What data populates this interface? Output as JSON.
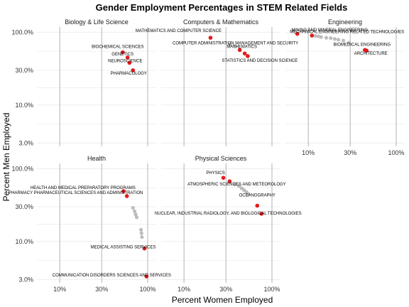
{
  "chart_data": {
    "type": "scatter",
    "title": "Gender Employment Percentages in STEM Related Fields",
    "xlabel": "Percent Women Employed",
    "ylabel": "Percent Men Employed",
    "scale": "log",
    "grid": true,
    "x_ticks": [
      {
        "value": 10,
        "label": "10%"
      },
      {
        "value": 30,
        "label": "30%"
      },
      {
        "value": 100,
        "label": "100%"
      }
    ],
    "y_ticks": [
      {
        "value": 3,
        "label": "3.0%"
      },
      {
        "value": 10,
        "label": "10.0%"
      },
      {
        "value": 30,
        "label": "30.0%"
      },
      {
        "value": 100,
        "label": "100.0%"
      }
    ],
    "highlight_color": "#e41a1c",
    "other_color": "#bdbdbd",
    "panels": [
      {
        "name": "Biology & Life Science",
        "labeled": [
          {
            "label": "BIOCHEMICAL SCIENCES",
            "x": 52,
            "y": 53
          },
          {
            "label": "GENETICS",
            "x": 59,
            "y": 45
          },
          {
            "label": "NEUROSCIENCE",
            "x": 62,
            "y": 38
          },
          {
            "label": "PHARMACOLOGY",
            "x": 68,
            "y": 30
          }
        ],
        "other": []
      },
      {
        "name": "Computers & Mathematics",
        "labeled": [
          {
            "label": "MATHEMATICS AND COMPUTER SCIENCE",
            "x": 20,
            "y": 84
          },
          {
            "label": "COMPUTER ADMINISTRATION MANAGEMENT AND SECURITY",
            "x": 43,
            "y": 57
          },
          {
            "label": "MATHEMATICS",
            "x": 49,
            "y": 51
          },
          {
            "label": "STATISTICS AND DECISION SCIENCE",
            "x": 53,
            "y": 47
          }
        ],
        "other": [
          {
            "x": 33,
            "y": 68
          },
          {
            "x": 38,
            "y": 64
          }
        ]
      },
      {
        "name": "Engineering",
        "labeled": [
          {
            "label": "MECHANICAL ENGINEERING RELATED TECHNOLOGIES",
            "x": 7.5,
            "y": 95
          },
          {
            "label": "MINING AND MINERAL ENGINEERING",
            "x": 11,
            "y": 90
          },
          {
            "label": "BIOMEDICAL ENGINEERING",
            "x": 44,
            "y": 57
          },
          {
            "label": "ARCHITECTURE",
            "x": 46,
            "y": 56
          }
        ],
        "other": [
          {
            "x": 11,
            "y": 90
          },
          {
            "x": 12,
            "y": 89
          },
          {
            "x": 13,
            "y": 88
          },
          {
            "x": 14,
            "y": 86
          },
          {
            "x": 16,
            "y": 84
          },
          {
            "x": 18,
            "y": 83
          },
          {
            "x": 20,
            "y": 81
          },
          {
            "x": 22,
            "y": 79
          },
          {
            "x": 25,
            "y": 77
          },
          {
            "x": 29,
            "y": 72
          }
        ]
      },
      {
        "name": "Health",
        "labeled": [
          {
            "label": "HEALTH AND MEDICAL PREPARATORY PROGRAMS",
            "x": 53,
            "y": 49
          },
          {
            "label": "PHARMACY PHARMACEUTICAL SCIENCES AND ADMINISTRATION",
            "x": 58,
            "y": 42
          },
          {
            "label": "MEDICAL ASSISTING SERVICES",
            "x": 92,
            "y": 8
          },
          {
            "label": "COMMUNICATION DISORDERS SCIENCES AND SERVICES",
            "x": 97,
            "y": 3.3
          }
        ],
        "other": [
          {
            "x": 68,
            "y": 29
          },
          {
            "x": 71,
            "y": 26
          },
          {
            "x": 73,
            "y": 23.5
          },
          {
            "x": 75,
            "y": 21.5
          },
          {
            "x": 84,
            "y": 14.5
          },
          {
            "x": 85,
            "y": 13
          },
          {
            "x": 86,
            "y": 11.5
          }
        ]
      },
      {
        "name": "Physical Sciences",
        "labeled": [
          {
            "label": "PHYSICS",
            "x": 28,
            "y": 75
          },
          {
            "label": "ATMOSPHERIC SCIENCES AND METEOROLOGY",
            "x": 33,
            "y": 67
          },
          {
            "label": "OCEANOGRAPHY",
            "x": 68,
            "y": 31
          },
          {
            "label": "NUCLEAR, INDUSTRIAL RADIOLOGY, AND BIOLOGICAL TECHNOLOGIES",
            "x": 76,
            "y": 24
          }
        ],
        "other": [
          {
            "x": 38,
            "y": 61
          },
          {
            "x": 42,
            "y": 58
          },
          {
            "x": 45,
            "y": 54
          },
          {
            "x": 48,
            "y": 51
          },
          {
            "x": 51,
            "y": 48
          },
          {
            "x": 54,
            "y": 45
          }
        ]
      }
    ]
  }
}
